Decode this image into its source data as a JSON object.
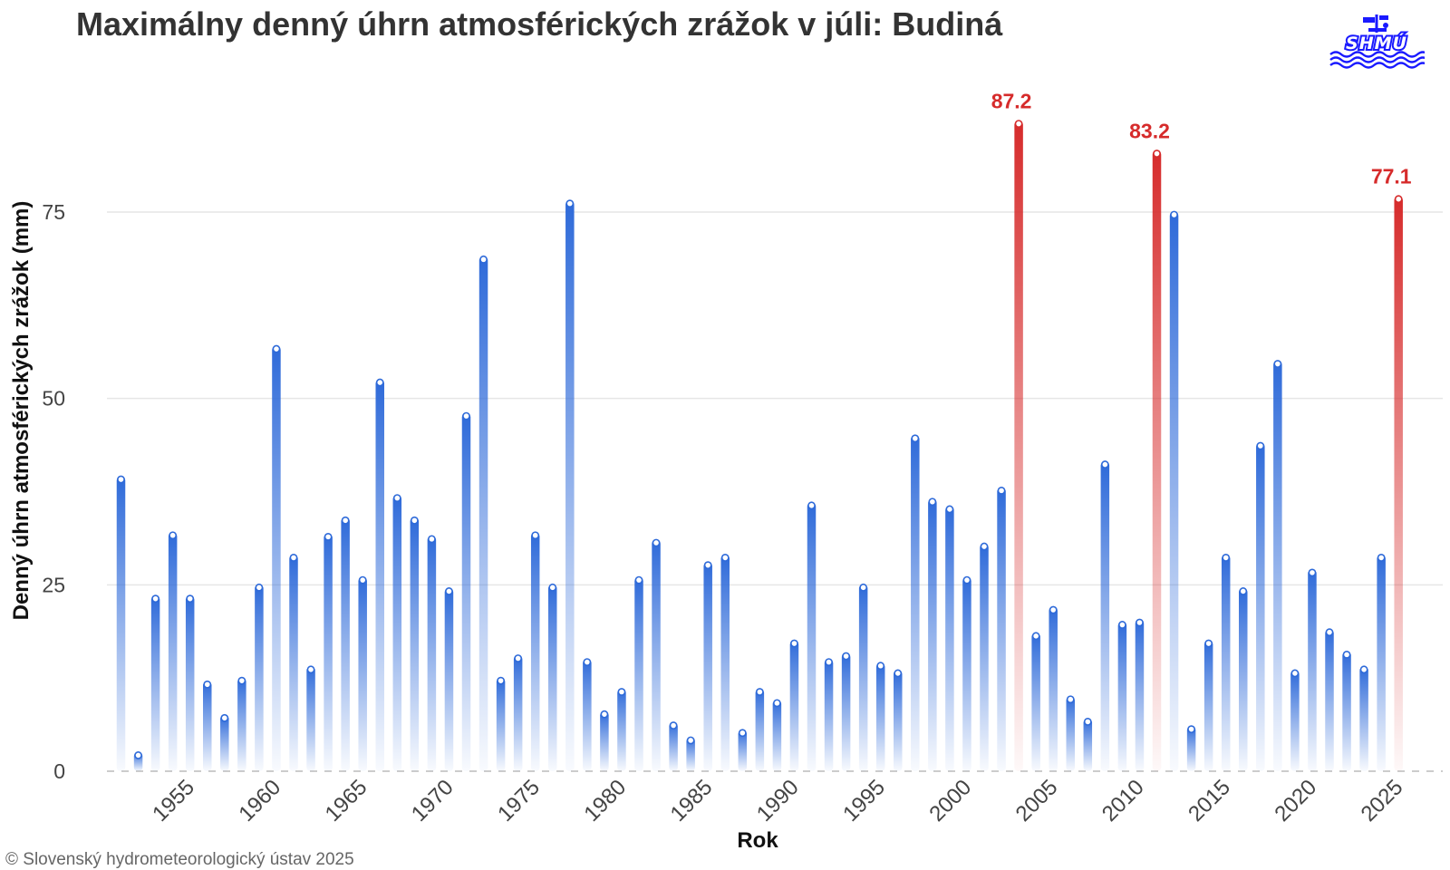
{
  "title": "Maximálny denný úhrn atmosférických zrážok v júli: Budiná",
  "logo_text": "SHMÚ",
  "copyright": "© Slovenský hydrometeorologický ústav 2025",
  "colors": {
    "bar": "#2e6ad9",
    "highlight": "#d62b2b",
    "grid": "#e6e6e6",
    "title": "#333333",
    "logo": "#1a1aff"
  },
  "chart_data": {
    "type": "bar",
    "xlabel": "Rok",
    "ylabel": "Denný úhrn atmosférických zrážok (mm)",
    "ylim": [
      0,
      90
    ],
    "yticks": [
      0,
      25,
      50,
      75
    ],
    "xticks": [
      1955,
      1960,
      1965,
      1970,
      1975,
      1980,
      1985,
      1990,
      1995,
      2000,
      2005,
      2010,
      2015,
      2020,
      2025
    ],
    "grid": true,
    "years": [
      1951,
      1952,
      1953,
      1954,
      1955,
      1956,
      1957,
      1958,
      1959,
      1960,
      1961,
      1962,
      1963,
      1964,
      1965,
      1966,
      1967,
      1968,
      1969,
      1970,
      1971,
      1972,
      1973,
      1974,
      1975,
      1976,
      1977,
      1978,
      1979,
      1980,
      1981,
      1982,
      1983,
      1984,
      1985,
      1986,
      1987,
      1988,
      1989,
      1990,
      1991,
      1992,
      1993,
      1994,
      1995,
      1996,
      1997,
      1998,
      1999,
      2000,
      2001,
      2002,
      2003,
      2004,
      2005,
      2006,
      2007,
      2008,
      2009,
      2010,
      2011,
      2012,
      2013,
      2014,
      2015,
      2016,
      2017,
      2018,
      2019,
      2020,
      2021,
      2022,
      2023,
      2024,
      2025
    ],
    "values": [
      39.5,
      2.5,
      23.5,
      32.0,
      23.5,
      12.0,
      7.5,
      12.5,
      25.0,
      57.0,
      29.0,
      14.0,
      31.8,
      34.0,
      26.0,
      52.5,
      37.0,
      34.0,
      31.5,
      24.5,
      48.0,
      69.0,
      12.5,
      15.5,
      32.0,
      25.0,
      76.5,
      15.0,
      8.0,
      11.0,
      26.0,
      31.0,
      6.5,
      4.5,
      28.0,
      29.0,
      5.5,
      11.0,
      9.5,
      17.5,
      36.0,
      15.0,
      15.8,
      25.0,
      14.5,
      13.5,
      45.0,
      36.5,
      35.5,
      26.0,
      30.5,
      38.0,
      87.2,
      18.5,
      22.0,
      10.0,
      7.0,
      41.5,
      20.0,
      20.3,
      83.2,
      75.0,
      6.0,
      17.5,
      29.0,
      24.5,
      44.0,
      55.0,
      13.5,
      27.0,
      19.0,
      16.0,
      14.0,
      29.0,
      77.1
    ],
    "highlighted": [
      {
        "year": 2003,
        "value": 87.2,
        "label": "87.2"
      },
      {
        "year": 2011,
        "value": 83.2,
        "label": "83.2"
      },
      {
        "year": 2025,
        "value": 77.1,
        "label": "77.1"
      }
    ]
  }
}
